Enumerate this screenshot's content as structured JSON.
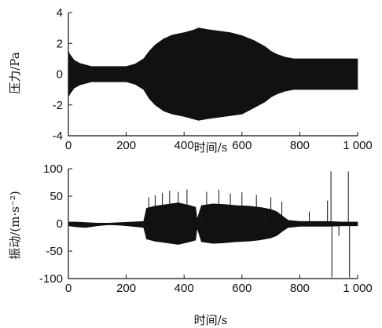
{
  "chart_data": [
    {
      "type": "area",
      "xlabel": "时间/s",
      "ylabel": "压力/Pa",
      "xlim": [
        0,
        1000
      ],
      "ylim": [
        -4,
        4
      ],
      "xticks": [
        "0",
        "200",
        "400",
        "600",
        "800",
        "1 000"
      ],
      "yticks": [
        "4",
        "2",
        "0",
        "-2",
        "-4"
      ],
      "grid": false,
      "series": [
        {
          "x": [
            0,
            5,
            20,
            40,
            80,
            120,
            160,
            200,
            230,
            260,
            280,
            300,
            330,
            360,
            400,
            430,
            450,
            480,
            520,
            560,
            600,
            640,
            680,
            700,
            720,
            750,
            780,
            800,
            850,
            900,
            950,
            1000
          ],
          "ymax": [
            1.5,
            1.3,
            0.9,
            0.7,
            0.5,
            0.5,
            0.5,
            0.5,
            0.65,
            1.0,
            1.5,
            1.9,
            2.3,
            2.55,
            2.7,
            2.85,
            3.0,
            2.9,
            2.8,
            2.7,
            2.5,
            2.2,
            1.8,
            1.5,
            1.3,
            1.1,
            1.0,
            1.0,
            1.0,
            1.0,
            1.0,
            1.0
          ],
          "ymin": [
            -1.5,
            -1.3,
            -0.9,
            -0.7,
            -0.5,
            -0.5,
            -0.5,
            -0.5,
            -0.65,
            -1.0,
            -1.6,
            -2.0,
            -2.4,
            -2.6,
            -2.75,
            -2.9,
            -3.0,
            -2.9,
            -2.8,
            -2.7,
            -2.6,
            -2.2,
            -1.8,
            -1.5,
            -1.3,
            -1.1,
            -1.0,
            -1.0,
            -1.0,
            -1.0,
            -1.0,
            -1.0
          ]
        }
      ]
    },
    {
      "type": "area",
      "xlabel": "时间/s",
      "ylabel": "振动/(m·s⁻²)",
      "xlim": [
        0,
        1000
      ],
      "ylim": [
        -100,
        100
      ],
      "xticks": [
        "0",
        "200",
        "400",
        "600",
        "800",
        "1 000"
      ],
      "yticks": [
        "100",
        "50",
        "0",
        "-50",
        "-100"
      ],
      "grid": false,
      "series": [
        {
          "x": [
            0,
            30,
            60,
            100,
            140,
            180,
            220,
            260,
            270,
            300,
            340,
            380,
            420,
            440,
            445,
            460,
            500,
            540,
            580,
            620,
            660,
            700,
            720,
            740,
            760,
            800,
            850,
            900,
            950,
            1000
          ],
          "ymax": [
            3,
            3,
            2,
            1,
            1,
            2,
            3,
            4,
            28,
            32,
            35,
            38,
            33,
            30,
            8,
            33,
            36,
            35,
            33,
            32,
            30,
            26,
            22,
            14,
            6,
            4,
            4,
            4,
            3,
            3
          ],
          "ymin": [
            -4,
            -6,
            -7,
            -4,
            -2,
            -3,
            -5,
            -7,
            -28,
            -32,
            -35,
            -38,
            -33,
            -30,
            -8,
            -33,
            -36,
            -35,
            -33,
            -32,
            -30,
            -26,
            -22,
            -14,
            -7,
            -5,
            -5,
            -5,
            -4,
            -4
          ]
        }
      ],
      "spikes": [
        {
          "x": 278,
          "y": 48
        },
        {
          "x": 300,
          "y": 52
        },
        {
          "x": 325,
          "y": 56
        },
        {
          "x": 350,
          "y": 60
        },
        {
          "x": 380,
          "y": 58
        },
        {
          "x": 410,
          "y": 62
        },
        {
          "x": 478,
          "y": 58
        },
        {
          "x": 520,
          "y": 62
        },
        {
          "x": 560,
          "y": 55
        },
        {
          "x": 600,
          "y": 57
        },
        {
          "x": 650,
          "y": 52
        },
        {
          "x": 700,
          "y": 48
        },
        {
          "x": 738,
          "y": 40
        },
        {
          "x": 833,
          "y": 22
        },
        {
          "x": 896,
          "y": 42
        },
        {
          "x": 908,
          "y": 95
        },
        {
          "x": 911,
          "y": -98
        },
        {
          "x": 935,
          "y": -22
        },
        {
          "x": 968,
          "y": 95
        },
        {
          "x": 972,
          "y": -98
        }
      ]
    }
  ]
}
